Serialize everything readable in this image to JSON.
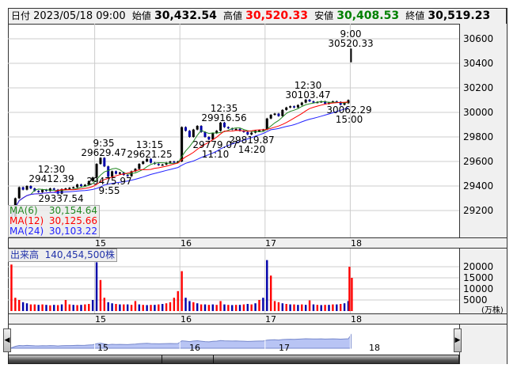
{
  "header": {
    "date_label": "日付",
    "date_value": "2023/05/18 09:00",
    "open_label": "始値",
    "open_value": "30,432.54",
    "high_label": "高値",
    "high_value": "30,520.33",
    "low_label": "安値",
    "low_value": "30,408.53",
    "close_label": "終値",
    "close_value": "30,519.23"
  },
  "colors": {
    "up": "#ff0000",
    "down": "#0000aa",
    "ma6": "#228822",
    "ma12": "#ff0000",
    "ma24": "#2222ff",
    "high": "#ff0000",
    "low": "#008000",
    "navigator_fill": "#b8c4f4"
  },
  "legend": {
    "ma6": {
      "label": "MA(6)",
      "value": "30,154.64",
      "period": 6
    },
    "ma12": {
      "label": "MA(12)",
      "value": "30,125.66",
      "period": 12
    },
    "ma24": {
      "label": "MA(24)",
      "value": "30,103.22",
      "period": 24
    }
  },
  "volume_panel": {
    "label": "出来高",
    "total": "140,454,500株",
    "unit": "(万株)"
  },
  "chart_data": [
    {
      "type": "line",
      "series_kind": "price",
      "ylim": [
        29100,
        30700
      ],
      "yticks": [
        29200,
        29400,
        29600,
        29800,
        30000,
        30200,
        30400,
        30600
      ],
      "grid": true,
      "day_labels": [
        "15",
        "16",
        "17",
        "18"
      ],
      "days": [
        "14",
        "15",
        "16",
        "17"
      ],
      "closes": [
        [
          29150,
          29300,
          29390,
          29370,
          29400,
          29380,
          29360,
          29350,
          29370,
          29360,
          29380,
          29370,
          29337.54,
          29375,
          29380,
          29385,
          29390,
          29412.39,
          29400,
          29410,
          29440,
          29470
        ],
        [
          29580,
          29629.47,
          29560,
          29475.97,
          29520,
          29500,
          29510,
          29490,
          29480,
          29520,
          29540,
          29580,
          29600,
          29621.25,
          29590,
          29580,
          29570,
          29575,
          29590,
          29600,
          29595,
          29600
        ],
        [
          29880,
          29850,
          29800,
          29860,
          29890,
          29840,
          29800,
          29779.07,
          29830,
          29850,
          29916.56,
          29880,
          29870,
          29860,
          29865,
          29850,
          29840,
          29819.87,
          29835,
          29850,
          29855,
          29860
        ],
        [
          29950,
          29980,
          29990,
          29970,
          30020,
          30040,
          30050,
          30040,
          30060,
          30080,
          30103.47,
          30090,
          30080,
          30085,
          30090,
          30070,
          30080,
          30090,
          30085,
          30062.29,
          30075,
          30100
        ]
      ],
      "last_bar": {
        "day": "18",
        "time": "9:00",
        "open": 30432.54,
        "high": 30520.33,
        "low": 30408.53,
        "close": 30519.23
      },
      "annotations": [
        {
          "id": "a1",
          "time": "12:30",
          "value": "29412.39"
        },
        {
          "id": "a2",
          "time": "",
          "value": "29337.54"
        },
        {
          "id": "a3",
          "time": "9:35",
          "value": "29629.47"
        },
        {
          "id": "a4",
          "time": "9:55",
          "value": "29475.97"
        },
        {
          "id": "a5",
          "time": "13:15",
          "value": "29621.25"
        },
        {
          "id": "a6",
          "time": "11:10",
          "value": "29779.07"
        },
        {
          "id": "a7",
          "time": "12:35",
          "value": "29916.56"
        },
        {
          "id": "a8",
          "time": "14:20",
          "value": "29819.87"
        },
        {
          "id": "a9",
          "time": "12:30",
          "value": "30103.47"
        },
        {
          "id": "a10",
          "time": "15:00",
          "value": "30062.29"
        },
        {
          "id": "a11",
          "time": "9:00",
          "value": "30520.33"
        }
      ]
    },
    {
      "type": "bar",
      "series_kind": "volume",
      "unit": "万株",
      "ylim": [
        0,
        28000
      ],
      "yticks": [
        5000,
        10000,
        15000,
        20000
      ],
      "grid": true,
      "values": [
        [
          21000,
          6000,
          5000,
          4000,
          3500,
          3000,
          3000,
          2800,
          3000,
          2800,
          2600,
          2800,
          2700,
          3000,
          5000,
          3000,
          2800,
          2700,
          2800,
          3000,
          3200,
          5000
        ],
        [
          22000,
          14000,
          6000,
          4000,
          3500,
          3200,
          3000,
          3000,
          3000,
          2800,
          4500,
          3000,
          2800,
          2700,
          2800,
          2800,
          3000,
          3200,
          3500,
          4000,
          6000,
          9000
        ],
        [
          18000,
          6000,
          4500,
          4000,
          3500,
          3000,
          3000,
          2800,
          3000,
          2800,
          4500,
          3000,
          2800,
          2700,
          2800,
          2800,
          3000,
          3200,
          3000,
          3500,
          5000,
          6000
        ],
        [
          23000,
          16000,
          4500,
          4000,
          3500,
          3200,
          3000,
          3000,
          2800,
          3000,
          2800,
          4800,
          3000,
          2800,
          2700,
          2800,
          2800,
          3000,
          3000,
          3200,
          3500,
          4500
        ],
        [
          20000,
          15000
        ]
      ],
      "directions": [
        [
          "u",
          "u",
          "u",
          "d",
          "d",
          "u",
          "u",
          "d",
          "u",
          "d",
          "u",
          "d",
          "u",
          "d",
          "u",
          "u",
          "d",
          "u",
          "d",
          "u",
          "u",
          "d"
        ],
        [
          "d",
          "u",
          "u",
          "d",
          "d",
          "u",
          "d",
          "u",
          "d",
          "u",
          "u",
          "d",
          "u",
          "d",
          "u",
          "d",
          "u",
          "d",
          "u",
          "u",
          "u",
          "u"
        ],
        [
          "u",
          "d",
          "d",
          "u",
          "d",
          "u",
          "d",
          "u",
          "d",
          "u",
          "u",
          "d",
          "u",
          "d",
          "u",
          "d",
          "u",
          "d",
          "u",
          "d",
          "u",
          "d"
        ],
        [
          "d",
          "u",
          "u",
          "u",
          "d",
          "u",
          "d",
          "u",
          "d",
          "u",
          "d",
          "u",
          "d",
          "u",
          "d",
          "u",
          "d",
          "u",
          "d",
          "u",
          "d",
          "d"
        ],
        [
          "u",
          "u"
        ]
      ]
    }
  ]
}
